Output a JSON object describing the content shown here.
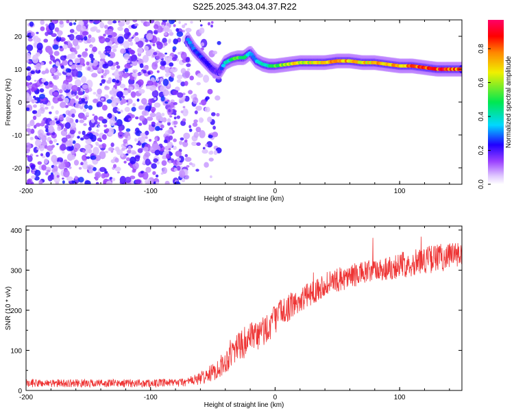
{
  "title": "S225.2025.343.04.37.R22",
  "colors": {
    "line": "#ee3333",
    "spectral_stops": [
      "#ffffff",
      "#e0c8ff",
      "#9a40ff",
      "#2000ff",
      "#00d8ff",
      "#00e850",
      "#f0f000",
      "#ff8800",
      "#ff0000",
      "#ff0066"
    ]
  },
  "chart_data": [
    {
      "type": "heatmap",
      "title": "",
      "xlabel": "Height of straight line (km)",
      "ylabel": "Frequency (Hz)",
      "xlim": [
        -200,
        150
      ],
      "ylim": [
        -25,
        25
      ],
      "x_ticks": [
        -200,
        -100,
        0,
        100
      ],
      "x_tick_labels": [
        "-200",
        "-100",
        "0",
        "100"
      ],
      "y_ticks": [
        -20,
        -10,
        0,
        10,
        20
      ],
      "y_tick_labels": [
        "-20",
        "-10",
        "0",
        "10",
        "20"
      ],
      "colorbar": {
        "label": "Normalized spectral amplitude",
        "range": [
          0,
          0.97
        ],
        "ticks": [
          0.0,
          0.2,
          0.4,
          0.6,
          0.8
        ],
        "tick_labels": [
          "0.0",
          "0.2",
          "0.4",
          "0.6",
          "0.8"
        ]
      },
      "noise_region_x": [
        -200,
        -55
      ],
      "ridge": {
        "x": [
          -70,
          -65,
          -60,
          -55,
          -50,
          -45,
          -40,
          -35,
          -30,
          -25,
          -20,
          -15,
          -10,
          -5,
          0,
          10,
          20,
          30,
          40,
          50,
          60,
          70,
          80,
          90,
          100,
          110,
          120,
          130,
          140,
          150
        ],
        "frequency": [
          19,
          16,
          14,
          12,
          10,
          9,
          12,
          13,
          13.5,
          13.5,
          15,
          12.5,
          11.5,
          11,
          11,
          11.5,
          12,
          12,
          12,
          12.5,
          12.5,
          12,
          12,
          11.5,
          11,
          11,
          10.5,
          10,
          10,
          10
        ],
        "amplitude": [
          0.35,
          0.3,
          0.28,
          0.25,
          0.22,
          0.2,
          0.4,
          0.5,
          0.6,
          0.5,
          0.4,
          0.35,
          0.45,
          0.5,
          0.6,
          0.7,
          0.75,
          0.7,
          0.8,
          0.85,
          0.8,
          0.75,
          0.8,
          0.75,
          0.8,
          0.85,
          0.9,
          0.95,
          0.9,
          0.85
        ]
      }
    },
    {
      "type": "line",
      "title": "",
      "xlabel": "Height of straight line (km)",
      "ylabel": "SNR (10 * v/v)",
      "xlim": [
        -200,
        150
      ],
      "ylim": [
        0,
        410
      ],
      "x_ticks": [
        -200,
        -100,
        0,
        100
      ],
      "x_tick_labels": [
        "-200",
        "-100",
        "0",
        "100"
      ],
      "y_ticks": [
        0,
        100,
        200,
        300,
        400
      ],
      "y_tick_labels": [
        "0",
        "100",
        "200",
        "300",
        "400"
      ],
      "series": [
        {
          "x": [
            -200,
            -180,
            -160,
            -140,
            -120,
            -100,
            -80,
            -70,
            -60,
            -50,
            -40,
            -35,
            -30,
            -25,
            -20,
            -15,
            -10,
            -5,
            0,
            5,
            10,
            20,
            30,
            40,
            50,
            60,
            70,
            80,
            90,
            100,
            110,
            120,
            130,
            140,
            150
          ],
          "mean": [
            18,
            18,
            18,
            18,
            18,
            18,
            19,
            22,
            30,
            45,
            70,
            95,
            110,
            120,
            125,
            135,
            145,
            160,
            180,
            195,
            205,
            225,
            245,
            265,
            275,
            285,
            292,
            298,
            305,
            312,
            318,
            325,
            330,
            335,
            340
          ],
          "spread": [
            10,
            10,
            10,
            10,
            10,
            10,
            10,
            12,
            16,
            22,
            30,
            35,
            38,
            40,
            42,
            42,
            42,
            40,
            38,
            36,
            34,
            32,
            30,
            30,
            30,
            30,
            30,
            30,
            32,
            32,
            34,
            34,
            36,
            36,
            36
          ]
        }
      ]
    }
  ]
}
